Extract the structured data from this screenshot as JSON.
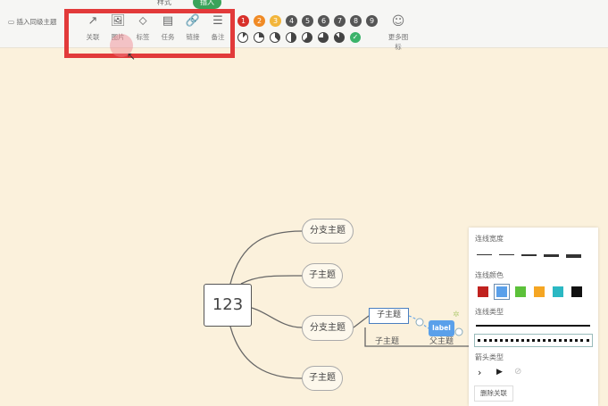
{
  "tabs": [
    {
      "label": "样式"
    },
    {
      "label": "插入"
    }
  ],
  "insert_parent_label": "插入同级主题",
  "tools": [
    {
      "label": "关联",
      "icon": "relation-arrow-icon",
      "glyph": "↗"
    },
    {
      "label": "图片",
      "icon": "image-icon",
      "glyph": "🖼"
    },
    {
      "label": "标签",
      "icon": "tag-icon",
      "glyph": "⬦"
    },
    {
      "label": "任务",
      "icon": "task-icon",
      "glyph": "▤"
    },
    {
      "label": "链接",
      "icon": "link-icon",
      "glyph": "🔗"
    },
    {
      "label": "备注",
      "icon": "note-icon",
      "glyph": "☰"
    }
  ],
  "priorities": [
    {
      "n": "1",
      "color": "#d8302a"
    },
    {
      "n": "2",
      "color": "#f08a24"
    },
    {
      "n": "3",
      "color": "#f2b53a"
    },
    {
      "n": "4",
      "color": "#555"
    },
    {
      "n": "5",
      "color": "#555"
    },
    {
      "n": "6",
      "color": "#555"
    },
    {
      "n": "7",
      "color": "#555"
    },
    {
      "n": "8",
      "color": "#555"
    },
    {
      "n": "9",
      "color": "#555"
    }
  ],
  "progress": [
    12.5,
    25,
    37.5,
    50,
    62.5,
    75,
    87.5,
    100
  ],
  "more_icons_label": "更多图标",
  "map": {
    "root": "123",
    "branches": [
      "分支主题",
      "子主题",
      "分支主题",
      "子主题"
    ],
    "sub_selected": "子主题",
    "sub_other": "子主题",
    "rel_label": "label",
    "parent_text": "父主题"
  },
  "panel": {
    "width_title": "连线宽度",
    "color_title": "连线颜色",
    "colors": [
      "#c0221f",
      "#5aa0ea",
      "#5cc13a",
      "#f5a623",
      "#2bb8c3",
      "#111111"
    ],
    "selected_color": "#5aa0ea",
    "type_title": "连线类型",
    "arrow_title": "箭头类型",
    "delete_label": "删除关联"
  }
}
